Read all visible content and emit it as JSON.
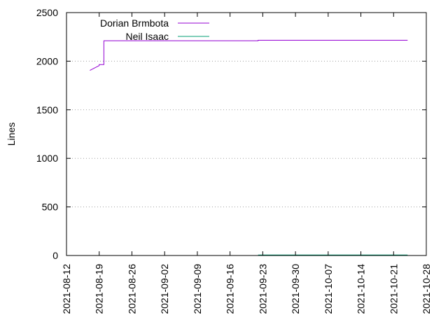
{
  "chart_data": {
    "type": "line",
    "title": "",
    "xlabel": "",
    "ylabel": "Lines",
    "x_type": "date",
    "xlim": [
      "2021-08-12",
      "2021-10-28"
    ],
    "ylim": [
      0,
      2500
    ],
    "x_ticks": [
      "2021-08-12",
      "2021-08-19",
      "2021-08-26",
      "2021-09-02",
      "2021-09-09",
      "2021-09-16",
      "2021-09-23",
      "2021-09-30",
      "2021-10-07",
      "2021-10-14",
      "2021-10-21",
      "2021-10-28"
    ],
    "y_ticks": [
      0,
      500,
      1000,
      1500,
      2000,
      2500
    ],
    "grid": "horizontal dotted",
    "legend_position": "top-left",
    "series": [
      {
        "name": "Dorian Brmbota",
        "color": "#9400d3",
        "points": [
          {
            "x": "2021-08-17",
            "y": 1905
          },
          {
            "x": "2021-08-19",
            "y": 1955
          },
          {
            "x": "2021-08-19",
            "y": 1965
          },
          {
            "x": "2021-08-20",
            "y": 1965
          },
          {
            "x": "2021-08-20",
            "y": 2210
          },
          {
            "x": "2021-09-22",
            "y": 2210
          },
          {
            "x": "2021-09-22",
            "y": 2215
          },
          {
            "x": "2021-10-24",
            "y": 2215
          }
        ]
      },
      {
        "name": "Neil Isaac",
        "color": "#009e73",
        "points": [
          {
            "x": "2021-09-22",
            "y": 5
          },
          {
            "x": "2021-10-24",
            "y": 5
          }
        ]
      }
    ]
  }
}
